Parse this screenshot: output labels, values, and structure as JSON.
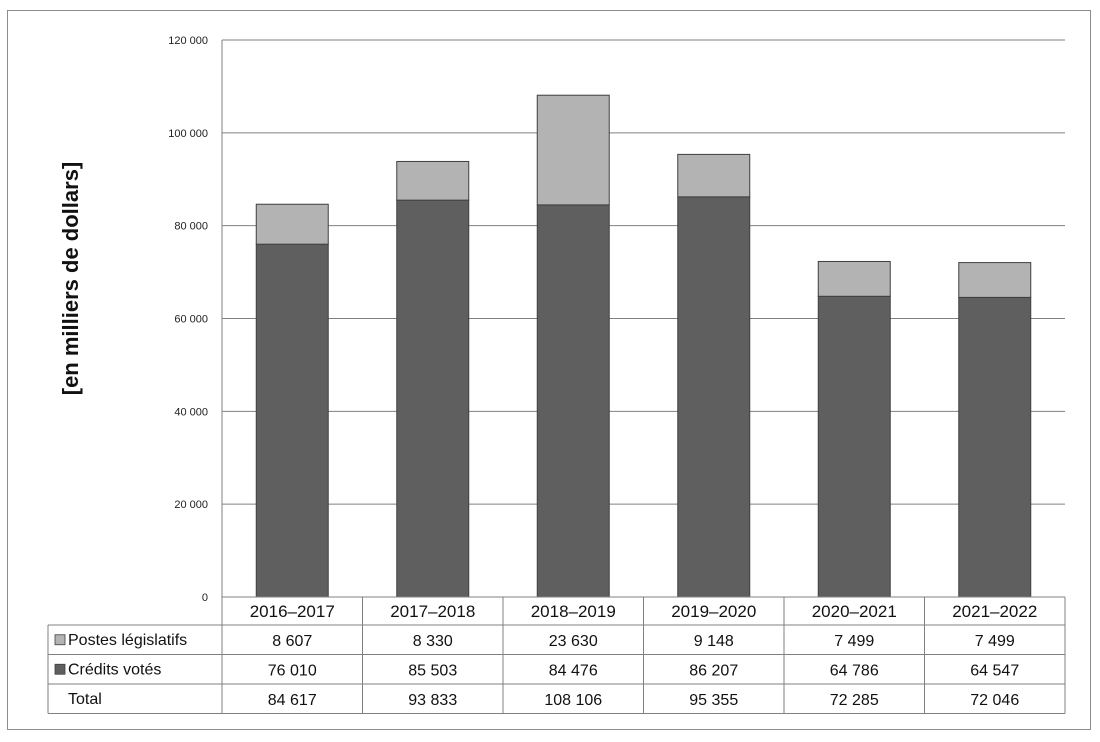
{
  "colors": {
    "postes": "#b3b3b3",
    "credits": "#5f5f5f",
    "outline": "#404040",
    "grid": "#808080"
  },
  "chart_data": {
    "type": "bar",
    "stacked": true,
    "ylabel": "[en milliers  de dollars]",
    "ylim": [
      0,
      120000
    ],
    "ytick_labels": [
      "0",
      "20 000",
      "40 000",
      "60 000",
      "80 000",
      "100 000",
      "120 000"
    ],
    "yticks": [
      0,
      20000,
      40000,
      60000,
      80000,
      100000,
      120000
    ],
    "grid": true,
    "categories": [
      "2016–2017",
      "2017–2018",
      "2018–2019",
      "2019–2020",
      "2020–2021",
      "2021–2022"
    ],
    "series": [
      {
        "name": "Crédits votés",
        "values": [
          76010,
          85503,
          84476,
          86207,
          64786,
          64547
        ],
        "display": [
          "76 010",
          "85 503",
          "84 476",
          "86 207",
          "64 786",
          "64 547"
        ]
      },
      {
        "name": "Postes législatifs",
        "values": [
          8607,
          8330,
          23630,
          9148,
          7499,
          7499
        ],
        "display": [
          "8 607",
          "8 330",
          "23 630",
          "9 148",
          "7 499",
          "7 499"
        ]
      }
    ],
    "total": {
      "name": "Total",
      "values": [
        84617,
        93833,
        108106,
        95355,
        72285,
        72046
      ],
      "display": [
        "84 617",
        "93 833",
        "108 106",
        "95 355",
        "72 285",
        "72 046"
      ]
    },
    "legend_placement": "data table below chart"
  }
}
